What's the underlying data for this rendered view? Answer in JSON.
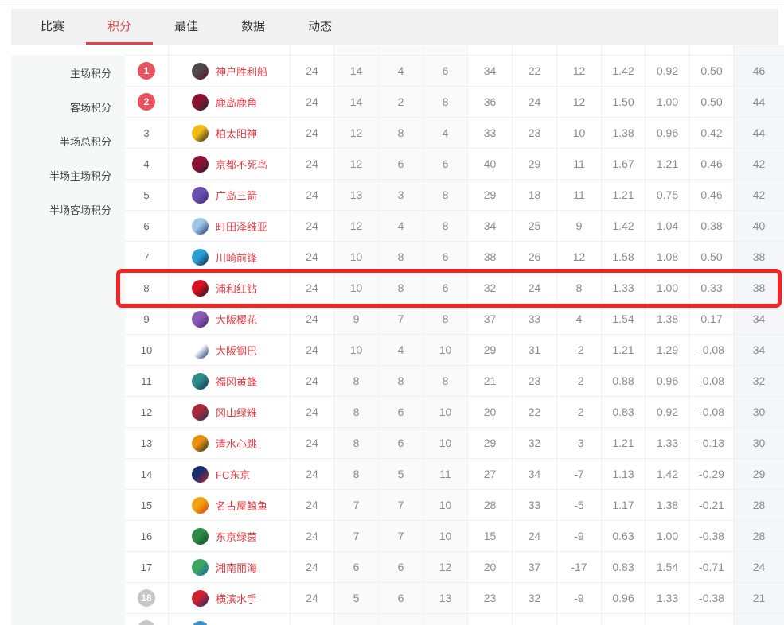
{
  "colors": {
    "accent_red": "#d9444f",
    "highlight_border": "#f42424",
    "badge_red": "#e8515f",
    "badge_gray": "#c7c7c7",
    "team_name_red": "#e23c43",
    "light_column_bg": "#fafafb",
    "points_column_bg": "#f5f6fa"
  },
  "tabs": {
    "items": [
      {
        "label": "比赛",
        "active": false
      },
      {
        "label": "积分",
        "active": true
      },
      {
        "label": "最佳",
        "active": false
      },
      {
        "label": "数据",
        "active": false
      },
      {
        "label": "动态",
        "active": false
      }
    ]
  },
  "sidebar": {
    "items": [
      {
        "label": "主场积分"
      },
      {
        "label": "客场积分"
      },
      {
        "label": "半场总积分"
      },
      {
        "label": "半场主场积分"
      },
      {
        "label": "半场客场积分"
      }
    ]
  },
  "table": {
    "rows": [
      {
        "rank": "1",
        "badge": "red",
        "team": "神户胜利船",
        "logo": [
          "#4a4a4a",
          "#701228"
        ],
        "values": [
          "24",
          "14",
          "4",
          "6",
          "34",
          "22",
          "12",
          "1.42",
          "0.92",
          "0.50",
          "46"
        ],
        "highlighted": false
      },
      {
        "rank": "2",
        "badge": "red",
        "team": "鹿岛鹿角",
        "logo": [
          "#8c1131",
          "#2b2b2b"
        ],
        "values": [
          "24",
          "14",
          "2",
          "8",
          "36",
          "24",
          "12",
          "1.50",
          "1.00",
          "0.50",
          "44"
        ],
        "highlighted": false
      },
      {
        "rank": "3",
        "badge": "none",
        "team": "柏太阳神",
        "logo": [
          "#f0bc12",
          "#222222"
        ],
        "values": [
          "24",
          "12",
          "8",
          "4",
          "33",
          "23",
          "10",
          "1.38",
          "0.96",
          "0.42",
          "44"
        ],
        "highlighted": false
      },
      {
        "rank": "4",
        "badge": "none",
        "team": "京都不死鸟",
        "logo": [
          "#8e1230",
          "#42103f"
        ],
        "values": [
          "24",
          "12",
          "6",
          "6",
          "40",
          "29",
          "11",
          "1.67",
          "1.21",
          "0.46",
          "42"
        ],
        "highlighted": false
      },
      {
        "rank": "5",
        "badge": "none",
        "team": "广岛三箭",
        "logo": [
          "#6b4fae",
          "#3d2a73"
        ],
        "values": [
          "24",
          "13",
          "3",
          "8",
          "29",
          "18",
          "11",
          "1.21",
          "0.75",
          "0.46",
          "42"
        ],
        "highlighted": false
      },
      {
        "rank": "6",
        "badge": "none",
        "team": "町田泽维亚",
        "logo": [
          "#9fc6e8",
          "#1d3a6b"
        ],
        "values": [
          "24",
          "12",
          "4",
          "8",
          "34",
          "25",
          "9",
          "1.42",
          "1.04",
          "0.38",
          "40"
        ],
        "highlighted": false
      },
      {
        "rank": "7",
        "badge": "none",
        "team": "川崎前锋",
        "logo": [
          "#2a9fd6",
          "#10284a"
        ],
        "values": [
          "24",
          "10",
          "8",
          "6",
          "38",
          "26",
          "12",
          "1.58",
          "1.08",
          "0.50",
          "38"
        ],
        "highlighted": false
      },
      {
        "rank": "8",
        "badge": "none",
        "team": "浦和红钻",
        "logo": [
          "#d8101f",
          "#1a1a1a"
        ],
        "values": [
          "24",
          "10",
          "8",
          "6",
          "32",
          "24",
          "8",
          "1.33",
          "1.00",
          "0.33",
          "38"
        ],
        "highlighted": true
      },
      {
        "rank": "9",
        "badge": "none",
        "team": "大阪樱花",
        "logo": [
          "#8a5bb5",
          "#4a2570"
        ],
        "values": [
          "24",
          "9",
          "7",
          "8",
          "37",
          "33",
          "4",
          "1.54",
          "1.38",
          "0.17",
          "34"
        ],
        "highlighted": false
      },
      {
        "rank": "10",
        "badge": "none",
        "team": "大阪钢巴",
        "logo": [
          "#ffffff",
          "#0d2d6b"
        ],
        "values": [
          "24",
          "10",
          "4",
          "10",
          "29",
          "31",
          "-2",
          "1.21",
          "1.29",
          "-0.08",
          "34"
        ],
        "highlighted": false
      },
      {
        "rank": "11",
        "badge": "none",
        "team": "福冈黄蜂",
        "logo": [
          "#2e8b8b",
          "#13315c"
        ],
        "values": [
          "24",
          "8",
          "8",
          "8",
          "21",
          "23",
          "-2",
          "0.88",
          "0.96",
          "-0.08",
          "32"
        ],
        "highlighted": false
      },
      {
        "rank": "12",
        "badge": "none",
        "team": "冈山绿雉",
        "logo": [
          "#a8283c",
          "#23355c"
        ],
        "values": [
          "24",
          "8",
          "6",
          "10",
          "20",
          "22",
          "-2",
          "0.83",
          "0.92",
          "-0.08",
          "30"
        ],
        "highlighted": false
      },
      {
        "rank": "13",
        "badge": "none",
        "team": "清水心跳",
        "logo": [
          "#e8920e",
          "#2b2b2b"
        ],
        "values": [
          "24",
          "8",
          "6",
          "10",
          "29",
          "32",
          "-3",
          "1.21",
          "1.33",
          "-0.13",
          "30"
        ],
        "highlighted": false
      },
      {
        "rank": "14",
        "badge": "none",
        "team": "FC东京",
        "logo": [
          "#1b2f6e",
          "#c01f2f"
        ],
        "values": [
          "24",
          "8",
          "5",
          "11",
          "27",
          "34",
          "-7",
          "1.13",
          "1.42",
          "-0.29",
          "29"
        ],
        "highlighted": false
      },
      {
        "rank": "15",
        "badge": "none",
        "team": "名古屋鲸鱼",
        "logo": [
          "#f2a30f",
          "#d8400f"
        ],
        "values": [
          "24",
          "7",
          "7",
          "10",
          "28",
          "33",
          "-5",
          "1.17",
          "1.38",
          "-0.21",
          "28"
        ],
        "highlighted": false
      },
      {
        "rank": "16",
        "badge": "none",
        "team": "东京绿茵",
        "logo": [
          "#2c8c45",
          "#0f4a23"
        ],
        "values": [
          "24",
          "7",
          "7",
          "10",
          "15",
          "24",
          "-9",
          "0.63",
          "1.00",
          "-0.38",
          "28"
        ],
        "highlighted": false
      },
      {
        "rank": "17",
        "badge": "none",
        "team": "湘南丽海",
        "logo": [
          "#3aa85c",
          "#1c6bb0"
        ],
        "values": [
          "24",
          "6",
          "6",
          "12",
          "20",
          "37",
          "-17",
          "0.83",
          "1.54",
          "-0.71",
          "24"
        ],
        "highlighted": false
      },
      {
        "rank": "18",
        "badge": "gray",
        "team": "横滨水手",
        "logo": [
          "#d01f2f",
          "#1b2f6e"
        ],
        "values": [
          "24",
          "5",
          "6",
          "13",
          "23",
          "32",
          "-9",
          "0.96",
          "1.33",
          "-0.38",
          "21"
        ],
        "highlighted": false
      },
      {
        "rank": "",
        "badge": "gray",
        "team": "",
        "logo": [
          "#3a8fc8",
          "#1b5e96"
        ],
        "values": [
          "",
          "",
          "",
          "",
          "",
          "",
          "",
          "",
          "",
          "",
          ""
        ],
        "highlighted": false
      }
    ]
  }
}
